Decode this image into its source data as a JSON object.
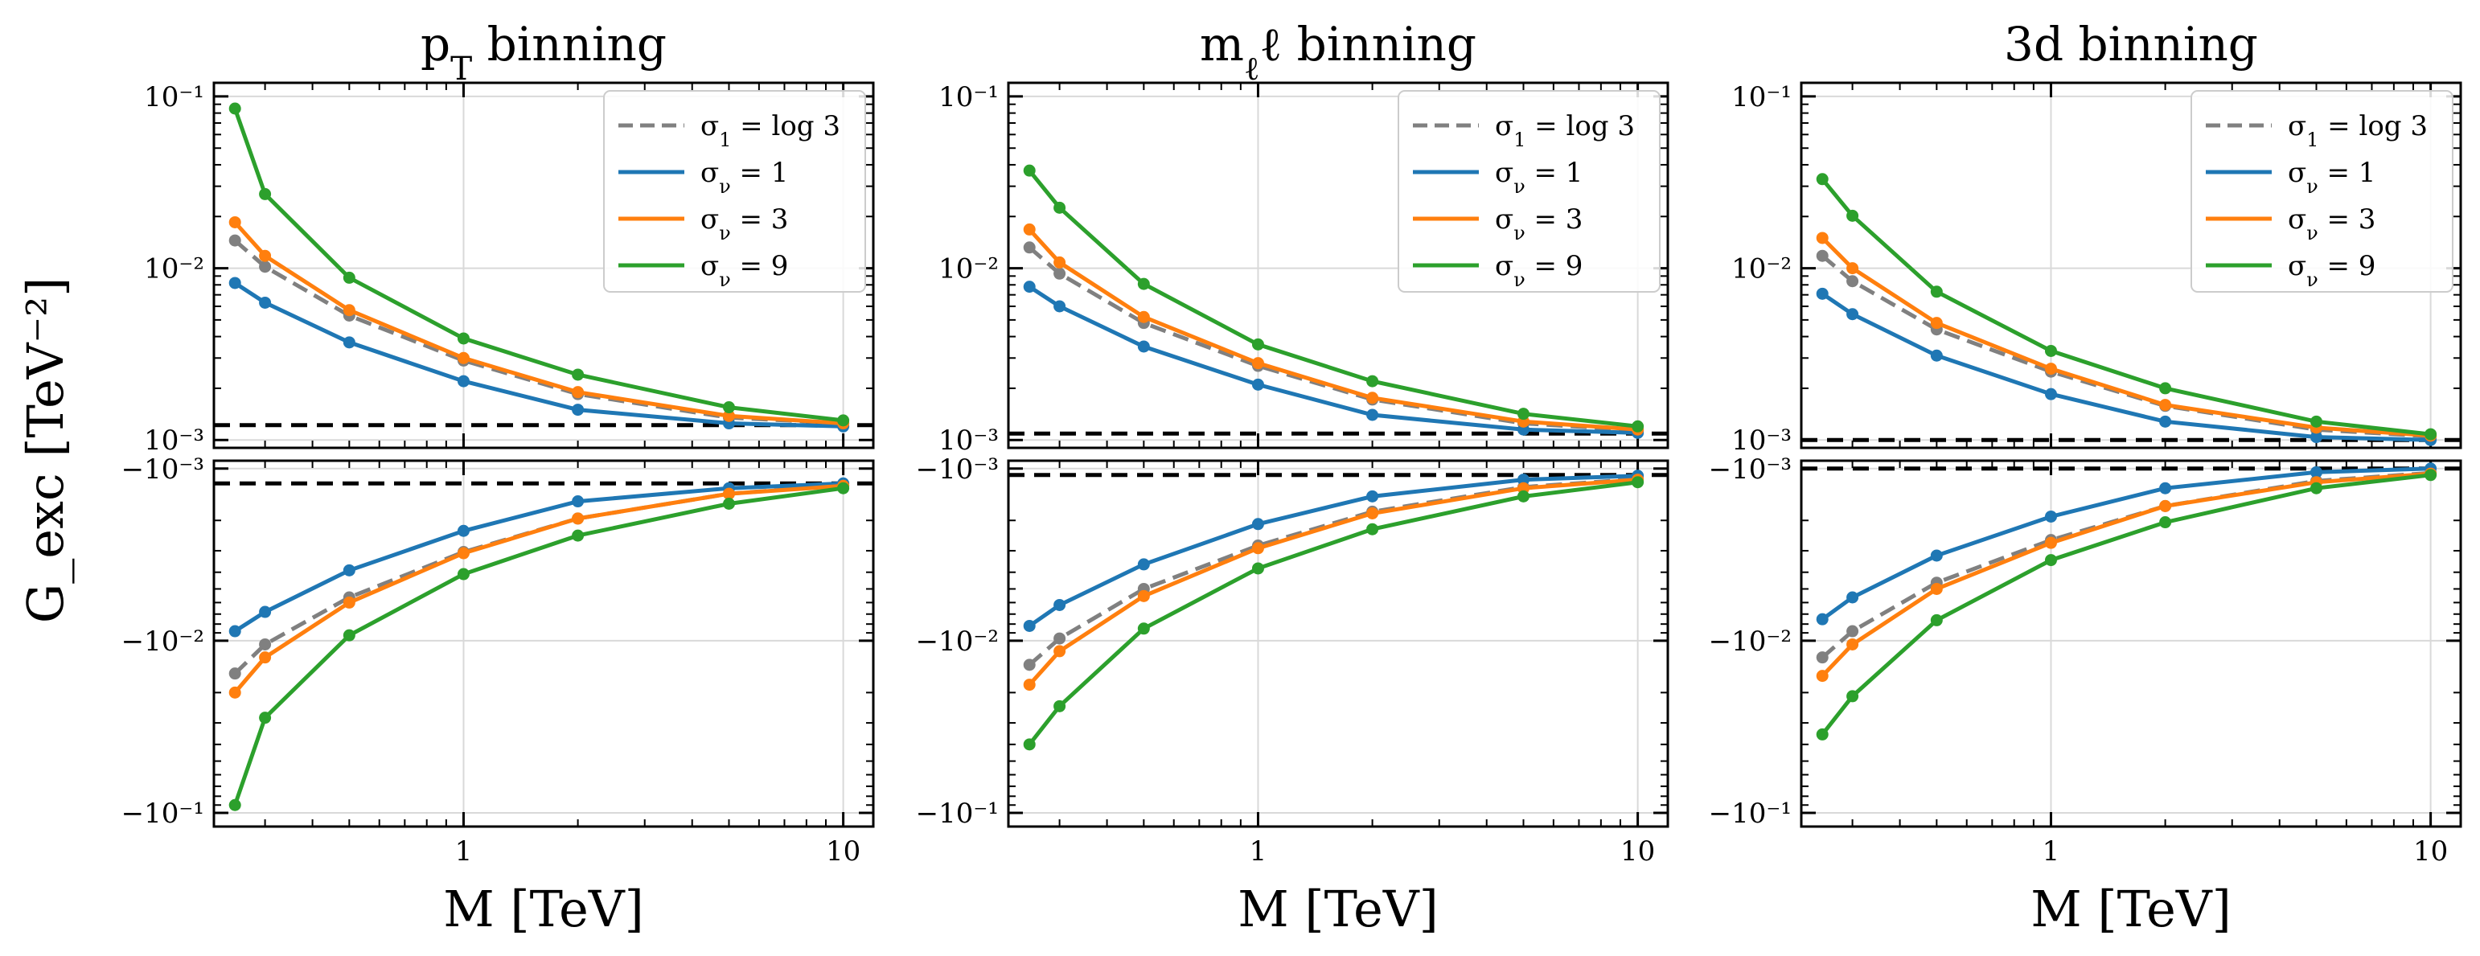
{
  "figure": {
    "ylabel": "G_exc [TeV⁻²]",
    "xlabel": "M [TeV]"
  },
  "chart_data": [
    {
      "type": "line",
      "title": "p_T binning",
      "xlabel": "M [TeV]",
      "xscale": "log",
      "yscale": "symlog-split",
      "xlim": [
        0.22,
        12
      ],
      "ylim_positive": [
        0.0009,
        0.12
      ],
      "ylim_negative": [
        -0.12,
        -0.0009
      ],
      "x_tick_labels": [
        "1",
        "10"
      ],
      "y_tick_labels_top": [
        "10^-3",
        "10^-2",
        "10^-1"
      ],
      "y_tick_labels_bottom": [
        "-10^-3",
        "-10^-2",
        "-10^-1"
      ],
      "grid": true,
      "legend": "top-right",
      "x": [
        0.25,
        0.3,
        0.5,
        1,
        2,
        5,
        10
      ],
      "threshold_positive": 0.00122,
      "threshold_negative": -0.00122,
      "series": [
        {
          "name": "σ_1 = log 3",
          "color": "#808080",
          "dash": true,
          "positive": [
            0.0145,
            0.0102,
            0.0053,
            0.0029,
            0.00185,
            0.00135,
            0.00125
          ],
          "negative": [
            -0.0155,
            -0.0105,
            -0.0056,
            -0.00305,
            -0.00195,
            -0.0014,
            -0.00125
          ]
        },
        {
          "name": "σ_ν = 1",
          "color": "#1f77b4",
          "dash": false,
          "positive": [
            0.0082,
            0.0063,
            0.0037,
            0.0022,
            0.0015,
            0.00125,
            0.0012
          ],
          "negative": [
            -0.0088,
            -0.0068,
            -0.0039,
            -0.0023,
            -0.00155,
            -0.0013,
            -0.00122
          ]
        },
        {
          "name": "σ_ν = 3",
          "color": "#ff7f0e",
          "dash": false,
          "positive": [
            0.0185,
            0.0118,
            0.0057,
            0.003,
            0.0019,
            0.00138,
            0.00125
          ],
          "negative": [
            -0.02,
            -0.0125,
            -0.006,
            -0.0031,
            -0.00195,
            -0.0014,
            -0.00126
          ]
        },
        {
          "name": "σ_ν = 9",
          "color": "#2ca02c",
          "dash": false,
          "positive": [
            0.085,
            0.027,
            0.0088,
            0.0039,
            0.0024,
            0.00155,
            0.0013
          ],
          "negative": [
            -0.09,
            -0.028,
            -0.0093,
            -0.0041,
            -0.00245,
            -0.0016,
            -0.0013
          ]
        }
      ]
    },
    {
      "type": "line",
      "title": "m_ℓℓ binning",
      "xlabel": "M [TeV]",
      "xscale": "log",
      "yscale": "symlog-split",
      "xlim": [
        0.22,
        12
      ],
      "ylim_positive": [
        0.0009,
        0.12
      ],
      "ylim_negative": [
        -0.12,
        -0.0009
      ],
      "x_tick_labels": [
        "1",
        "10"
      ],
      "y_tick_labels_top": [
        "10^-3",
        "10^-2",
        "10^-1"
      ],
      "y_tick_labels_bottom": [
        "-10^-3",
        "-10^-2",
        "-10^-1"
      ],
      "grid": true,
      "legend": "top-right",
      "x": [
        0.25,
        0.3,
        0.5,
        1,
        2,
        5,
        10
      ],
      "threshold_positive": 0.00109,
      "threshold_negative": -0.00109,
      "series": [
        {
          "name": "σ_1 = log 3",
          "color": "#808080",
          "dash": true,
          "positive": [
            0.0132,
            0.0093,
            0.0048,
            0.0027,
            0.00172,
            0.00125,
            0.00114
          ],
          "negative": [
            -0.0138,
            -0.0097,
            -0.005,
            -0.0028,
            -0.00178,
            -0.00128,
            -0.00115
          ]
        },
        {
          "name": "σ_ν = 1",
          "color": "#1f77b4",
          "dash": false,
          "positive": [
            0.0078,
            0.006,
            0.0035,
            0.0021,
            0.0014,
            0.00115,
            0.0011
          ],
          "negative": [
            -0.0082,
            -0.0062,
            -0.0036,
            -0.0021,
            -0.00145,
            -0.00116,
            -0.0011
          ]
        },
        {
          "name": "σ_ν = 3",
          "color": "#ff7f0e",
          "dash": false,
          "positive": [
            0.0168,
            0.0108,
            0.0052,
            0.0028,
            0.00176,
            0.00128,
            0.00115
          ],
          "negative": [
            -0.018,
            -0.0115,
            -0.0055,
            -0.0029,
            -0.00182,
            -0.0013,
            -0.00116
          ]
        },
        {
          "name": "σ_ν = 9",
          "color": "#2ca02c",
          "dash": false,
          "positive": [
            0.037,
            0.0225,
            0.0081,
            0.0036,
            0.0022,
            0.00142,
            0.0012
          ],
          "negative": [
            -0.04,
            -0.024,
            -0.0085,
            -0.0038,
            -0.00225,
            -0.00145,
            -0.0012
          ]
        }
      ]
    },
    {
      "type": "line",
      "title": "3d binning",
      "xlabel": "M [TeV]",
      "xscale": "log",
      "yscale": "symlog-split",
      "xlim": [
        0.22,
        12
      ],
      "ylim_positive": [
        0.0009,
        0.12
      ],
      "ylim_negative": [
        -0.12,
        -0.0009
      ],
      "x_tick_labels": [
        "1",
        "10"
      ],
      "y_tick_labels_top": [
        "10^-3",
        "10^-2",
        "10^-1"
      ],
      "y_tick_labels_bottom": [
        "-10^-3",
        "-10^-2",
        "-10^-1"
      ],
      "grid": true,
      "legend": "top-right",
      "x": [
        0.25,
        0.3,
        0.5,
        1,
        2,
        5,
        10
      ],
      "threshold_positive": 0.001,
      "threshold_negative": -0.001,
      "series": [
        {
          "name": "σ_1 = log 3",
          "color": "#808080",
          "dash": true,
          "positive": [
            0.0118,
            0.0084,
            0.0044,
            0.0025,
            0.00158,
            0.00115,
            0.00105
          ],
          "negative": [
            -0.0125,
            -0.0088,
            -0.0046,
            -0.0026,
            -0.00165,
            -0.00118,
            -0.00106
          ]
        },
        {
          "name": "σ_ν = 1",
          "color": "#1f77b4",
          "dash": false,
          "positive": [
            0.0071,
            0.0054,
            0.0031,
            0.00185,
            0.00128,
            0.00104,
            0.001
          ],
          "negative": [
            -0.0075,
            -0.0056,
            -0.0032,
            -0.0019,
            -0.0013,
            -0.00105,
            -0.001
          ]
        },
        {
          "name": "σ_ν = 3",
          "color": "#ff7f0e",
          "dash": false,
          "positive": [
            0.015,
            0.01,
            0.0048,
            0.0026,
            0.0016,
            0.00118,
            0.00106
          ],
          "negative": [
            -0.016,
            -0.0105,
            -0.005,
            -0.0027,
            -0.00165,
            -0.0012,
            -0.00107
          ]
        },
        {
          "name": "σ_ν = 9",
          "color": "#2ca02c",
          "dash": false,
          "positive": [
            0.033,
            0.0202,
            0.0073,
            0.0033,
            0.002,
            0.00128,
            0.00108
          ],
          "negative": [
            -0.035,
            -0.021,
            -0.0076,
            -0.0034,
            -0.00205,
            -0.0013,
            -0.00109
          ]
        }
      ]
    }
  ]
}
